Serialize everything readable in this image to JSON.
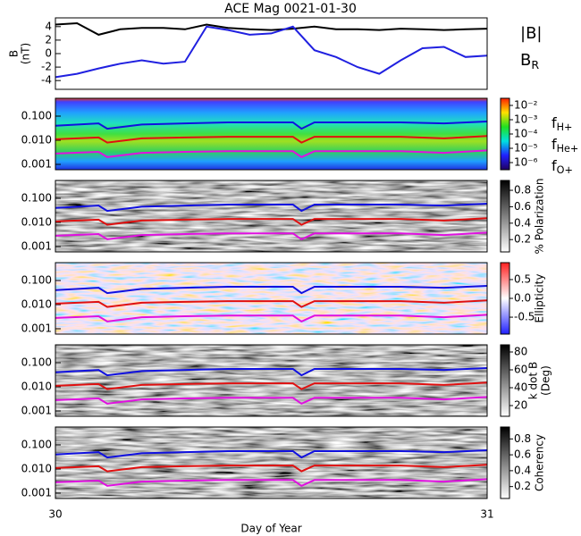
{
  "chart_data": [
    {
      "type": "line",
      "title": "ACE Mag 0021-01-30",
      "ylabel": [
        "B",
        "(nT)"
      ],
      "x": [
        30,
        30.05,
        30.1,
        30.15,
        30.2,
        30.25,
        30.3,
        30.35,
        30.4,
        30.45,
        30.5,
        30.55,
        30.6,
        30.65,
        30.7,
        30.75,
        30.8,
        30.85,
        30.9,
        30.95,
        31
      ],
      "xlim": [
        30,
        31
      ],
      "ylim": [
        -5.3,
        5.3
      ],
      "yticks": [
        4,
        2,
        0,
        -2,
        -4
      ],
      "series": [
        {
          "name": "|B|",
          "color": "#000000",
          "values": [
            4.3,
            4.5,
            2.8,
            3.6,
            3.8,
            3.8,
            3.6,
            4.3,
            3.8,
            3.6,
            3.5,
            3.7,
            4.0,
            3.6,
            3.6,
            3.5,
            3.7,
            3.6,
            3.5,
            3.6,
            3.7
          ]
        },
        {
          "name": "B",
          "subscript": "R",
          "color": "#2020e0",
          "values": [
            -3.5,
            -3,
            -2.2,
            -1.5,
            -1,
            -1.5,
            -1.2,
            4,
            3.5,
            2.8,
            3,
            4,
            0.5,
            -0.5,
            -2,
            -3,
            -1,
            0.8,
            1,
            -0.5,
            -0.3
          ]
        }
      ]
    },
    {
      "type": "spectrogram",
      "log_y": true,
      "x": [
        30,
        30.1,
        30.12,
        30.2,
        30.3,
        30.4,
        30.55,
        30.57,
        30.6,
        30.7,
        30.8,
        30.9,
        31
      ],
      "xlim": [
        30,
        31
      ],
      "ylim": [
        0.0006,
        0.55
      ],
      "yticks": [
        {
          "value": 0.1,
          "label": "0.100"
        },
        {
          "value": 0.01,
          "label": "0.010"
        },
        0.001
      ],
      "series": [
        {
          "name": "f",
          "subscript": "H+",
          "color": "#1010e0",
          "values": [
            0.04,
            0.05,
            0.03,
            0.045,
            0.05,
            0.055,
            0.055,
            0.03,
            0.055,
            0.055,
            0.055,
            0.05,
            0.06
          ]
        },
        {
          "name": "f",
          "subscript": "He+",
          "color": "#e01010",
          "values": [
            0.011,
            0.013,
            0.008,
            0.012,
            0.013,
            0.014,
            0.014,
            0.008,
            0.014,
            0.014,
            0.014,
            0.012,
            0.015
          ]
        },
        {
          "name": "f",
          "subscript": "O+",
          "color": "#e010e0",
          "values": [
            0.0028,
            0.0033,
            0.002,
            0.003,
            0.0033,
            0.0035,
            0.0035,
            0.002,
            0.0035,
            0.0035,
            0.0035,
            0.003,
            0.0038
          ]
        }
      ],
      "colorbar": {
        "ylim": [
          -6.5,
          -1.5
        ],
        "yticks": [
          {
            "value": -2,
            "label": "10⁻²"
          },
          {
            "value": -3,
            "label": "10⁻³"
          },
          {
            "value": -4,
            "label": "10⁻⁴"
          },
          {
            "value": -5,
            "label": "10⁻⁵"
          },
          {
            "value": -6,
            "label": "10⁻⁶"
          }
        ]
      }
    },
    {
      "type": "spectrogram",
      "log_y": true,
      "x": [
        30,
        30.1,
        30.12,
        30.2,
        30.3,
        30.4,
        30.55,
        30.57,
        30.6,
        30.7,
        30.8,
        30.9,
        31
      ],
      "xlim": [
        30,
        31
      ],
      "ylim": [
        0.0006,
        0.55
      ],
      "yticks": [
        {
          "value": 0.1,
          "label": "0.100"
        },
        {
          "value": 0.01,
          "label": "0.010"
        },
        0.001
      ],
      "series": [
        {
          "color": "#1010e0",
          "values": [
            0.04,
            0.05,
            0.03,
            0.045,
            0.05,
            0.055,
            0.055,
            0.03,
            0.055,
            0.055,
            0.055,
            0.05,
            0.06
          ]
        },
        {
          "color": "#e01010",
          "values": [
            0.011,
            0.013,
            0.008,
            0.012,
            0.013,
            0.014,
            0.014,
            0.008,
            0.014,
            0.014,
            0.014,
            0.012,
            0.015
          ]
        },
        {
          "color": "#e010e0",
          "values": [
            0.0028,
            0.0033,
            0.002,
            0.003,
            0.0033,
            0.0035,
            0.0035,
            0.002,
            0.0035,
            0.0035,
            0.0035,
            0.003,
            0.0038
          ]
        }
      ],
      "colorbar": {
        "label": [
          "% Polarization"
        ],
        "ylim": [
          0.05,
          0.92
        ],
        "yticks": [
          0.8,
          0.6,
          0.4,
          0.2
        ]
      }
    },
    {
      "type": "spectrogram",
      "log_y": true,
      "x": [
        30,
        30.1,
        30.12,
        30.2,
        30.3,
        30.4,
        30.55,
        30.57,
        30.6,
        30.7,
        30.8,
        30.9,
        31
      ],
      "xlim": [
        30,
        31
      ],
      "ylim": [
        0.0006,
        0.55
      ],
      "yticks": [
        {
          "value": 0.1,
          "label": "0.100"
        },
        {
          "value": 0.01,
          "label": "0.010"
        },
        0.001
      ],
      "series": [
        {
          "color": "#1010e0",
          "values": [
            0.04,
            0.05,
            0.03,
            0.045,
            0.05,
            0.055,
            0.055,
            0.03,
            0.055,
            0.055,
            0.055,
            0.05,
            0.06
          ]
        },
        {
          "color": "#e01010",
          "values": [
            0.011,
            0.013,
            0.008,
            0.012,
            0.013,
            0.014,
            0.014,
            0.008,
            0.014,
            0.014,
            0.014,
            0.012,
            0.015
          ]
        },
        {
          "color": "#e010e0",
          "values": [
            0.0028,
            0.0033,
            0.002,
            0.003,
            0.0033,
            0.0035,
            0.0035,
            0.002,
            0.0035,
            0.0035,
            0.0035,
            0.003,
            0.0038
          ]
        }
      ],
      "colorbar": {
        "label": [
          "Ellipticity"
        ],
        "ylim": [
          -0.95,
          0.95
        ],
        "yticks": [
          0.5,
          {
            "value": 0,
            "label": "0.0"
          },
          -0.5
        ]
      }
    },
    {
      "type": "spectrogram",
      "log_y": true,
      "x": [
        30,
        30.1,
        30.12,
        30.2,
        30.3,
        30.4,
        30.55,
        30.57,
        30.6,
        30.7,
        30.8,
        30.9,
        31
      ],
      "xlim": [
        30,
        31
      ],
      "ylim": [
        0.0006,
        0.55
      ],
      "yticks": [
        {
          "value": 0.1,
          "label": "0.100"
        },
        {
          "value": 0.01,
          "label": "0.010"
        },
        0.001
      ],
      "series": [
        {
          "color": "#1010e0",
          "values": [
            0.04,
            0.05,
            0.03,
            0.045,
            0.05,
            0.055,
            0.055,
            0.03,
            0.055,
            0.055,
            0.055,
            0.05,
            0.06
          ]
        },
        {
          "color": "#e01010",
          "values": [
            0.011,
            0.013,
            0.008,
            0.012,
            0.013,
            0.014,
            0.014,
            0.008,
            0.014,
            0.014,
            0.014,
            0.012,
            0.015
          ]
        },
        {
          "color": "#e010e0",
          "values": [
            0.0028,
            0.0033,
            0.002,
            0.003,
            0.0033,
            0.0035,
            0.0035,
            0.002,
            0.0035,
            0.0035,
            0.0035,
            0.003,
            0.0038
          ]
        }
      ],
      "colorbar": {
        "label": [
          "k dot B",
          "(Deg)"
        ],
        "ylim": [
          8,
          88
        ],
        "yticks": [
          80,
          60,
          40,
          20
        ]
      }
    },
    {
      "type": "spectrogram",
      "log_y": true,
      "x": [
        30,
        30.1,
        30.12,
        30.2,
        30.3,
        30.4,
        30.55,
        30.57,
        30.6,
        30.7,
        30.8,
        30.9,
        31
      ],
      "xlim": [
        30,
        31
      ],
      "ylim": [
        0.0006,
        0.55
      ],
      "yticks": [
        {
          "value": 0.1,
          "label": "0.100"
        },
        {
          "value": 0.01,
          "label": "0.010"
        },
        0.001
      ],
      "series": [
        {
          "color": "#1010e0",
          "values": [
            0.04,
            0.05,
            0.03,
            0.045,
            0.05,
            0.055,
            0.055,
            0.03,
            0.055,
            0.055,
            0.055,
            0.05,
            0.06
          ]
        },
        {
          "color": "#e01010",
          "values": [
            0.011,
            0.013,
            0.008,
            0.012,
            0.013,
            0.014,
            0.014,
            0.008,
            0.014,
            0.014,
            0.014,
            0.012,
            0.015
          ]
        },
        {
          "color": "#e010e0",
          "values": [
            0.0028,
            0.0033,
            0.002,
            0.003,
            0.0033,
            0.0035,
            0.0035,
            0.002,
            0.0035,
            0.0035,
            0.0035,
            0.003,
            0.0038
          ]
        }
      ],
      "colorbar": {
        "label": [
          "Coherency"
        ],
        "ylim": [
          0.05,
          0.95
        ],
        "yticks": [
          0.8,
          0.6,
          0.4,
          0.2
        ]
      },
      "xticks": [
        30,
        31
      ],
      "xlabel": "Day of Year"
    }
  ]
}
